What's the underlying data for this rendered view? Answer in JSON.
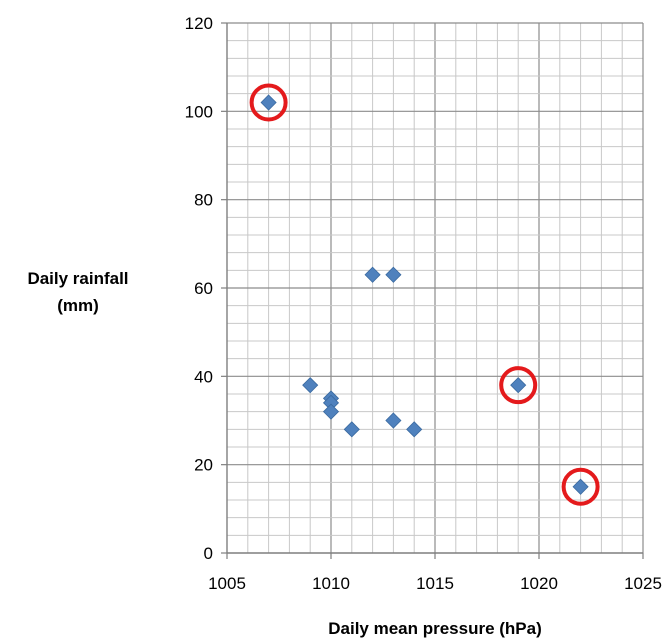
{
  "chart_data": {
    "type": "scatter",
    "xlabel": "Daily mean pressure (hPa)",
    "ylabel_lines": [
      "Daily rainfall",
      "(mm)"
    ],
    "xlim": [
      1005,
      1025
    ],
    "ylim": [
      0,
      120
    ],
    "x_ticks": [
      1005,
      1010,
      1015,
      1020,
      1025
    ],
    "y_ticks": [
      0,
      20,
      40,
      60,
      80,
      100,
      120
    ],
    "grid": true,
    "x_minor_step": 1,
    "y_minor_step": 4,
    "marker": "diamond",
    "point_color": "#4f81bd",
    "highlight_color": "#e41a1c",
    "points": [
      {
        "x": 1007,
        "y": 102
      },
      {
        "x": 1009,
        "y": 38
      },
      {
        "x": 1010,
        "y": 35
      },
      {
        "x": 1010,
        "y": 34
      },
      {
        "x": 1010,
        "y": 32
      },
      {
        "x": 1011,
        "y": 28
      },
      {
        "x": 1012,
        "y": 63
      },
      {
        "x": 1013,
        "y": 63
      },
      {
        "x": 1013,
        "y": 30
      },
      {
        "x": 1014,
        "y": 28
      },
      {
        "x": 1019,
        "y": 38
      },
      {
        "x": 1022,
        "y": 15
      }
    ],
    "highlighted": [
      {
        "x": 1007,
        "y": 102
      },
      {
        "x": 1019,
        "y": 38
      },
      {
        "x": 1022,
        "y": 15
      }
    ]
  }
}
